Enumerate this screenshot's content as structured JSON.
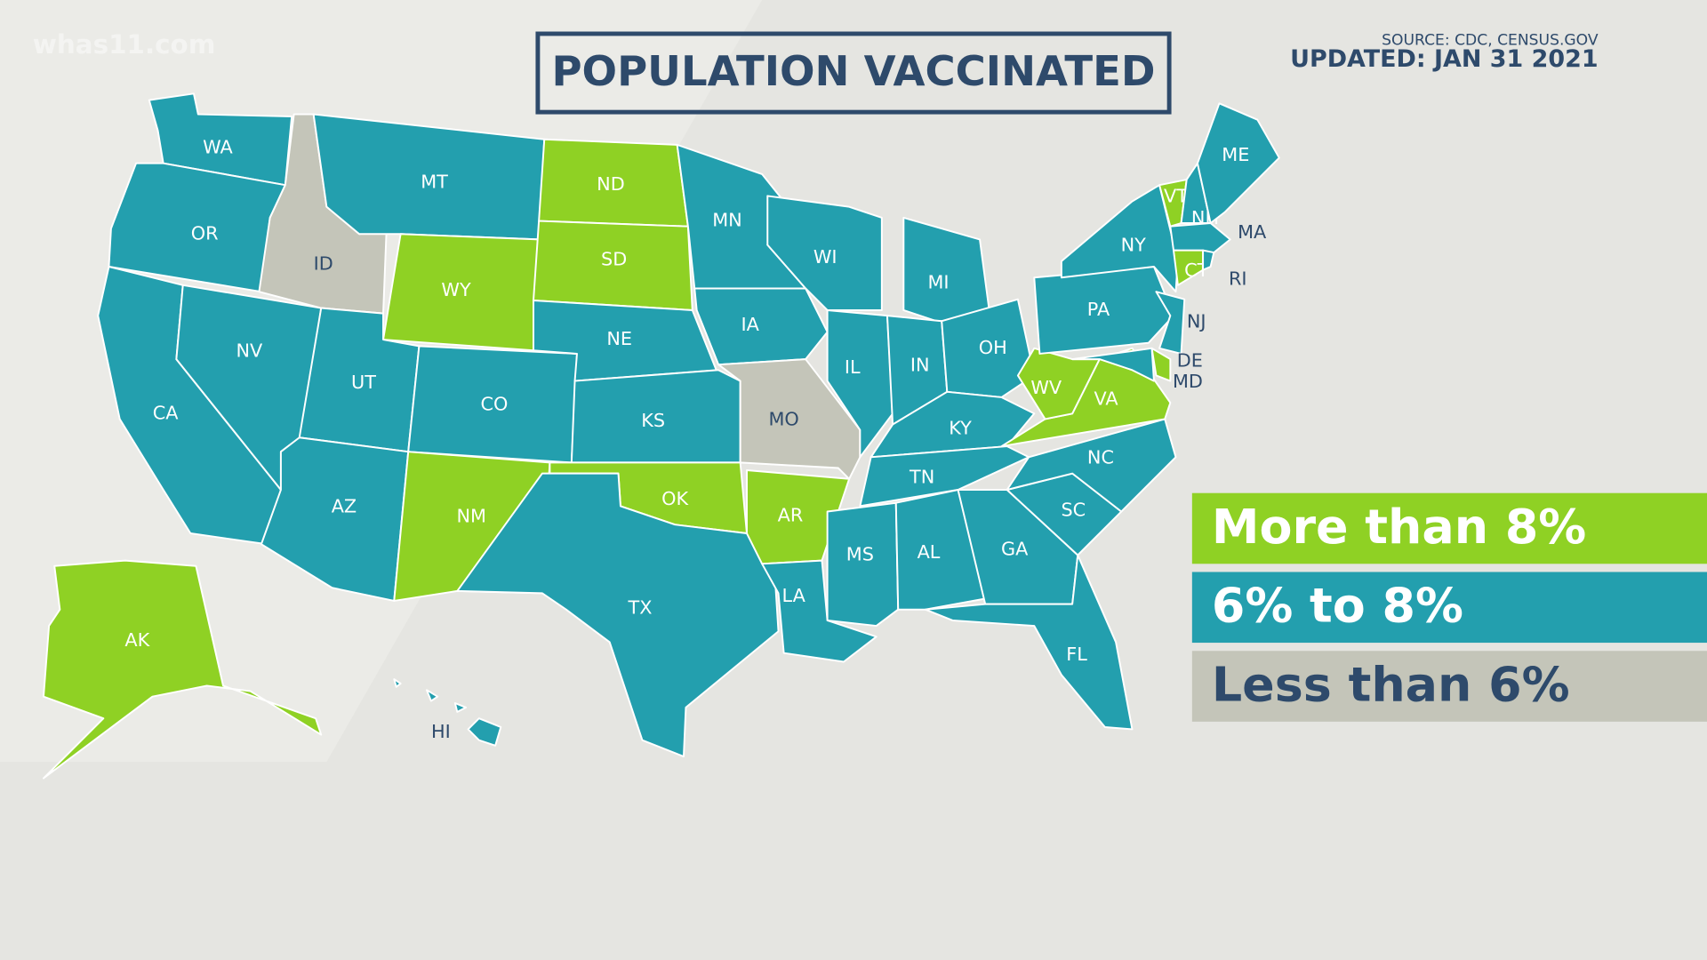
{
  "header": {
    "title": "POPULATION VACCINATED",
    "source": "SOURCE: CDC, CENSUS.GOV",
    "updated": "UPDATED: JAN 31 2021",
    "watermark": "whas11.com"
  },
  "legend": [
    {
      "label": "More than 8%",
      "color": "#8fd124"
    },
    {
      "label": "6% to 8%",
      "color": "#239fae"
    },
    {
      "label": "Less than 6%",
      "color": "#c4c5b9"
    }
  ],
  "states": [
    {
      "label": "WA",
      "group": 1
    },
    {
      "label": "OR",
      "group": 1
    },
    {
      "label": "CA",
      "group": 1
    },
    {
      "label": "NV",
      "group": 1
    },
    {
      "label": "ID",
      "group": 2
    },
    {
      "label": "MT",
      "group": 1
    },
    {
      "label": "WY",
      "group": 0
    },
    {
      "label": "UT",
      "group": 1
    },
    {
      "label": "CO",
      "group": 1
    },
    {
      "label": "AZ",
      "group": 1
    },
    {
      "label": "NM",
      "group": 0
    },
    {
      "label": "ND",
      "group": 0
    },
    {
      "label": "SD",
      "group": 0
    },
    {
      "label": "NE",
      "group": 1
    },
    {
      "label": "KS",
      "group": 1
    },
    {
      "label": "OK",
      "group": 0
    },
    {
      "label": "TX",
      "group": 1
    },
    {
      "label": "MN",
      "group": 1
    },
    {
      "label": "IA",
      "group": 1
    },
    {
      "label": "MO",
      "group": 2
    },
    {
      "label": "AR",
      "group": 0
    },
    {
      "label": "LA",
      "group": 1
    },
    {
      "label": "WI",
      "group": 1
    },
    {
      "label": "IL",
      "group": 1
    },
    {
      "label": "MI",
      "group": 1
    },
    {
      "label": "IN",
      "group": 1
    },
    {
      "label": "OH",
      "group": 1
    },
    {
      "label": "KY",
      "group": 1
    },
    {
      "label": "TN",
      "group": 1
    },
    {
      "label": "MS",
      "group": 1
    },
    {
      "label": "AL",
      "group": 1
    },
    {
      "label": "GA",
      "group": 1
    },
    {
      "label": "FL",
      "group": 1
    },
    {
      "label": "SC",
      "group": 1
    },
    {
      "label": "NC",
      "group": 1
    },
    {
      "label": "VA",
      "group": 0
    },
    {
      "label": "WV",
      "group": 0
    },
    {
      "label": "PA",
      "group": 1
    },
    {
      "label": "NY",
      "group": 1
    },
    {
      "label": "NJ",
      "group": 1
    },
    {
      "label": "DE",
      "group": 0
    },
    {
      "label": "MD",
      "group": 1
    },
    {
      "label": "VT",
      "group": 0
    },
    {
      "label": "NH",
      "group": 1
    },
    {
      "label": "ME",
      "group": 1
    },
    {
      "label": "MA",
      "group": 1
    },
    {
      "label": "CT",
      "group": 0
    },
    {
      "label": "RI",
      "group": 1
    },
    {
      "label": "AK",
      "group": 0
    },
    {
      "label": "HI",
      "group": 1
    }
  ]
}
